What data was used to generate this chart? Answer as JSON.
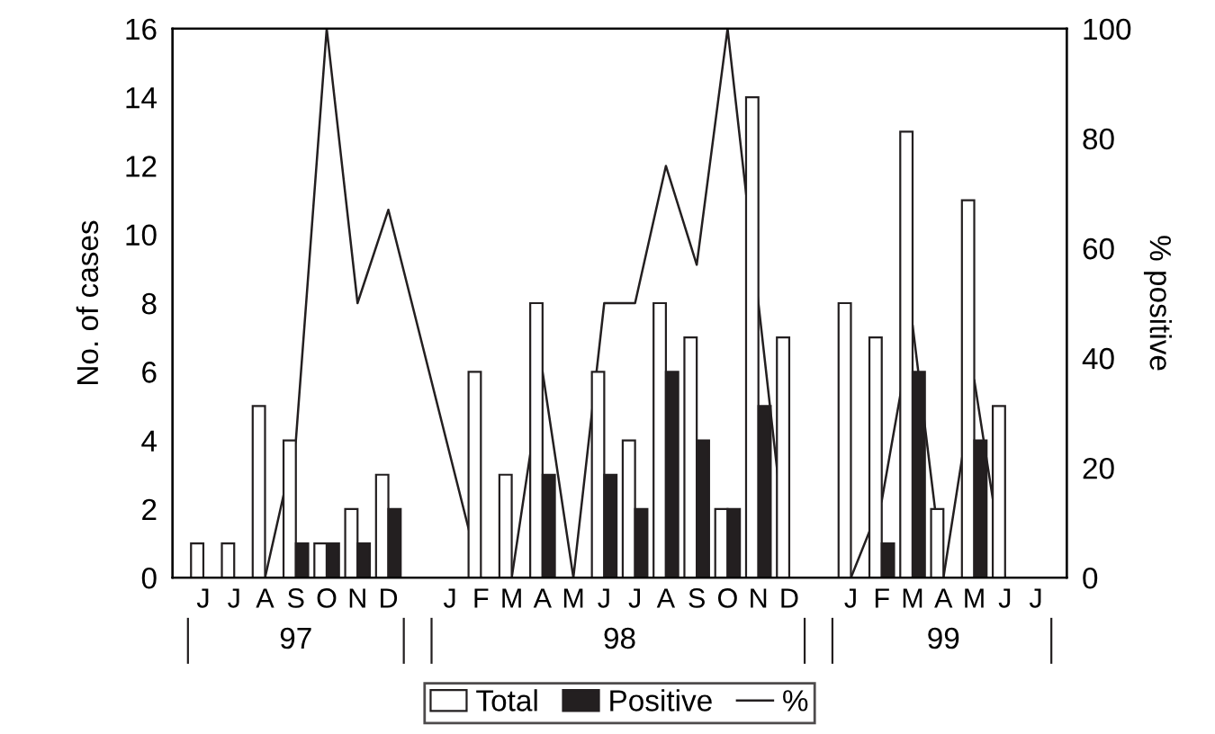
{
  "chart_data": {
    "type": "bar",
    "categories": [
      "J",
      "J",
      "A",
      "S",
      "O",
      "N",
      "D",
      null,
      "J",
      "F",
      "M",
      "A",
      "M",
      "J",
      "J",
      "A",
      "S",
      "O",
      "N",
      "D",
      null,
      "J",
      "F",
      "M",
      "A",
      "M",
      "J",
      "J"
    ],
    "series": [
      {
        "name": "Total",
        "color": "#ffffff",
        "values": [
          1,
          1,
          5,
          4,
          1,
          2,
          3,
          null,
          null,
          6,
          3,
          8,
          null,
          6,
          4,
          8,
          7,
          2,
          14,
          7,
          null,
          8,
          7,
          13,
          2,
          11,
          5,
          null
        ]
      },
      {
        "name": "Positive",
        "color": "#231f20",
        "values": [
          0,
          0,
          0,
          1,
          1,
          1,
          2,
          null,
          null,
          0,
          0,
          3,
          null,
          3,
          2,
          6,
          4,
          2,
          5,
          0,
          null,
          0,
          1,
          6,
          0,
          4,
          0,
          null
        ]
      },
      {
        "name": "%",
        "type": "line",
        "axis": "y2",
        "color": "#231f20",
        "values": [
          null,
          null,
          0,
          25,
          100,
          50,
          67,
          null,
          null,
          0,
          0,
          37.5,
          0,
          50,
          50,
          75,
          57,
          100,
          50,
          0,
          null,
          0,
          14,
          46,
          0,
          36,
          0,
          null
        ]
      }
    ],
    "ylabel": "No. of cases",
    "y2label": "% positive",
    "ylim": [
      0,
      16
    ],
    "yticks": [
      0,
      2,
      4,
      6,
      8,
      10,
      12,
      14,
      16
    ],
    "y2lim": [
      0,
      100
    ],
    "y2ticks": [
      0,
      20,
      40,
      60,
      80,
      100
    ],
    "annotations": [
      "97",
      "98",
      "99"
    ],
    "legend": "bottom",
    "grid": false
  }
}
